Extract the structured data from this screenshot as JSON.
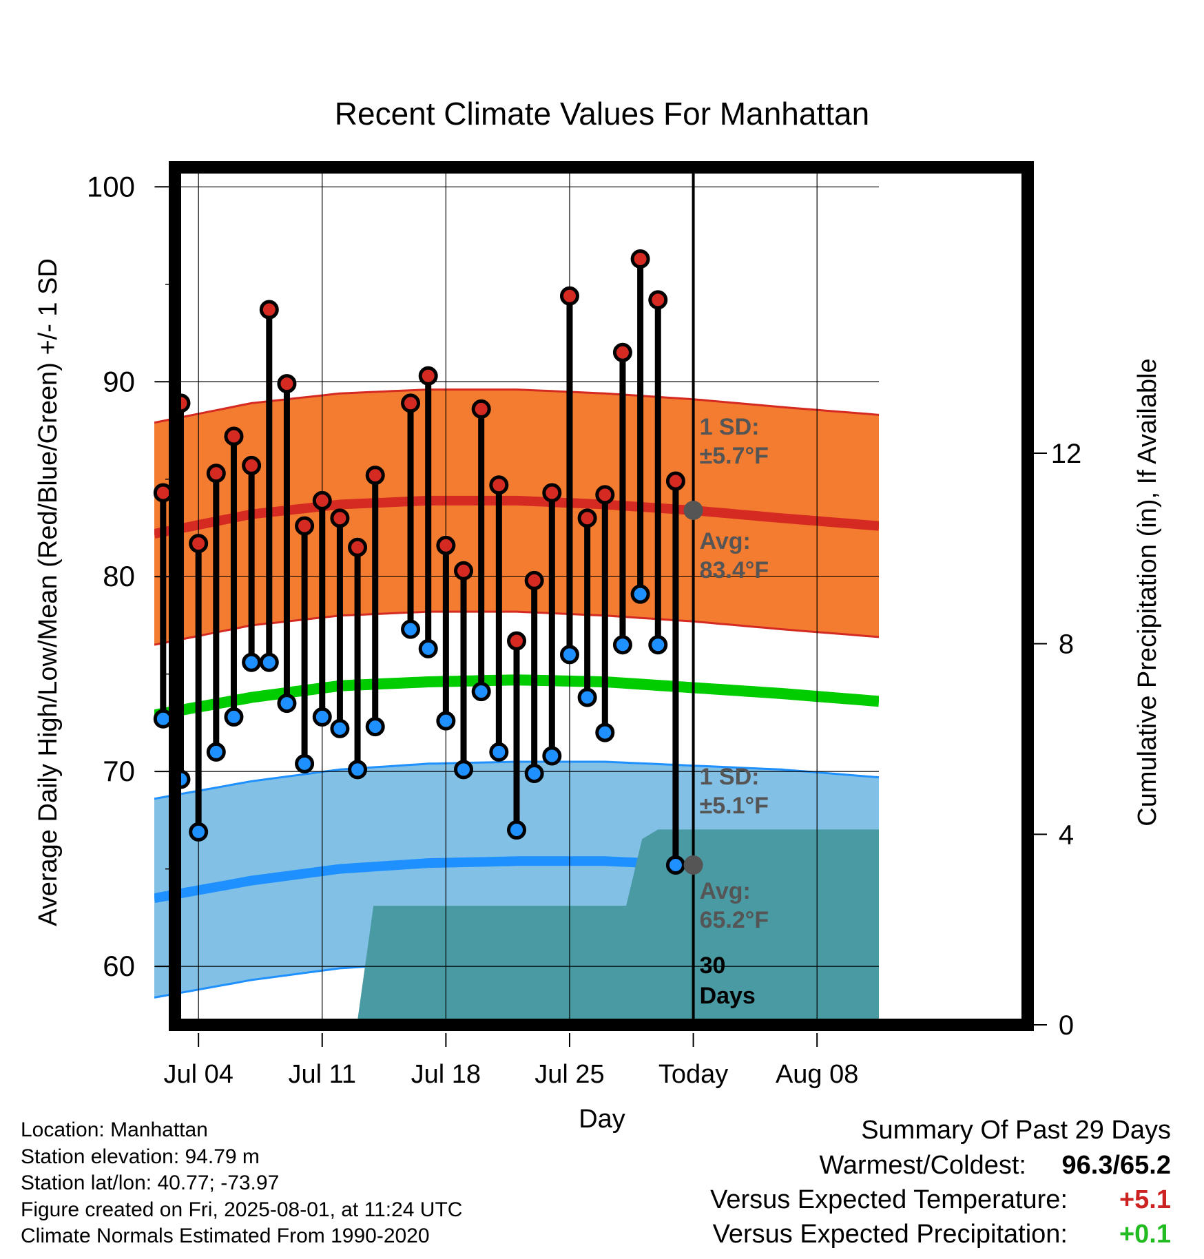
{
  "chart_data": {
    "type": "line",
    "title": "Recent Climate Values For Manhattan",
    "xlabel": "Day",
    "ylabel_left": "Average Daily High/Low/Mean (Red/Blue/Green) +/- 1 SD",
    "ylabel_right": "Cumulative Precipitation (in), If Available",
    "ylim": [
      57,
      101
    ],
    "yticks": [
      60,
      70,
      80,
      90,
      100
    ],
    "ylim_right": [
      0,
      18
    ],
    "yticks_right": [
      0,
      4,
      8,
      12
    ],
    "x_range_days": [
      -30.5,
      10.5
    ],
    "x_ticks": [
      {
        "day": -28,
        "label": "Jul 04"
      },
      {
        "day": -21,
        "label": "Jul 11"
      },
      {
        "day": -14,
        "label": "Jul 18"
      },
      {
        "day": -7,
        "label": "Jul 25"
      },
      {
        "day": 0,
        "label": "Today"
      },
      {
        "day": 7,
        "label": "Aug 08"
      }
    ],
    "grid": true,
    "series": [
      {
        "name": "High",
        "color": "#cc2222"
      },
      {
        "name": "Low",
        "color": "#1e90ff"
      },
      {
        "name": "Mean",
        "color": "#00cc00"
      }
    ],
    "observed": [
      {
        "date": "Jul 02",
        "day": -30,
        "high": 84.3,
        "low": 72.7
      },
      {
        "date": "Jul 03",
        "day": -29,
        "high": 88.9,
        "low": 69.6
      },
      {
        "date": "Jul 04",
        "day": -28,
        "high": 81.7,
        "low": 66.9
      },
      {
        "date": "Jul 05",
        "day": -27,
        "high": 85.3,
        "low": 71.0
      },
      {
        "date": "Jul 06",
        "day": -26,
        "high": 87.2,
        "low": 72.8
      },
      {
        "date": "Jul 07",
        "day": -25,
        "high": 85.7,
        "low": 75.6
      },
      {
        "date": "Jul 08",
        "day": -24,
        "high": 93.7,
        "low": 75.6
      },
      {
        "date": "Jul 09",
        "day": -23,
        "high": 89.9,
        "low": 73.5
      },
      {
        "date": "Jul 10",
        "day": -22,
        "high": 82.6,
        "low": 70.4
      },
      {
        "date": "Jul 11",
        "day": -21,
        "high": 83.9,
        "low": 72.8
      },
      {
        "date": "Jul 12",
        "day": -20,
        "high": 83.0,
        "low": 72.2
      },
      {
        "date": "Jul 13",
        "day": -19,
        "high": 81.5,
        "low": 70.1
      },
      {
        "date": "Jul 14",
        "day": -18,
        "high": 85.2,
        "low": 72.3
      },
      {
        "date": "Jul 16",
        "day": -16,
        "high": 88.9,
        "low": 77.3
      },
      {
        "date": "Jul 17",
        "day": -15,
        "high": 90.3,
        "low": 76.3
      },
      {
        "date": "Jul 18",
        "day": -14,
        "high": 81.6,
        "low": 72.6
      },
      {
        "date": "Jul 19",
        "day": -13,
        "high": 80.3,
        "low": 70.1
      },
      {
        "date": "Jul 20",
        "day": -12,
        "high": 88.6,
        "low": 74.1
      },
      {
        "date": "Jul 21",
        "day": -11,
        "high": 84.7,
        "low": 71.0
      },
      {
        "date": "Jul 22",
        "day": -10,
        "high": 76.7,
        "low": 67.0
      },
      {
        "date": "Jul 23",
        "day": -9,
        "high": 79.8,
        "low": 69.9
      },
      {
        "date": "Jul 24",
        "day": -8,
        "high": 84.3,
        "low": 70.8
      },
      {
        "date": "Jul 25",
        "day": -7,
        "high": 94.4,
        "low": 76.0
      },
      {
        "date": "Jul 26",
        "day": -6,
        "high": 83.0,
        "low": 73.8
      },
      {
        "date": "Jul 27",
        "day": -5,
        "high": 84.2,
        "low": 72.0
      },
      {
        "date": "Jul 28",
        "day": -4,
        "high": 91.5,
        "low": 76.5
      },
      {
        "date": "Jul 29",
        "day": -3,
        "high": 96.3,
        "low": 79.1
      },
      {
        "date": "Jul 30",
        "day": -2,
        "high": 94.2,
        "low": 76.5
      },
      {
        "date": "Jul 31",
        "day": -1,
        "high": 84.9,
        "low": 65.2
      }
    ],
    "normals": {
      "days": [
        -30.5,
        -25,
        -20,
        -15,
        -10,
        -5,
        0,
        5,
        10.5
      ],
      "avg_high": [
        82.2,
        83.2,
        83.7,
        83.9,
        83.9,
        83.7,
        83.4,
        83.0,
        82.6
      ],
      "avg_low": [
        63.5,
        64.4,
        65.0,
        65.3,
        65.4,
        65.4,
        65.2,
        65.0,
        64.6
      ],
      "avg_mean": [
        72.9,
        73.8,
        74.4,
        74.6,
        74.7,
        74.6,
        74.3,
        74.0,
        73.6
      ],
      "high_sd": 5.7,
      "low_sd": 5.1
    },
    "precipitation_cumulative": {
      "days": [
        -30.5,
        -23.5,
        -22.8,
        -20,
        -19.5,
        -19,
        -18.1,
        -3.8,
        -2.9,
        -2,
        10.5
      ],
      "values": [
        0,
        0,
        0.1,
        0.1,
        0.1,
        0.1,
        2.5,
        2.5,
        3.9,
        4.1,
        4.1
      ]
    },
    "annotations": {
      "high_sd": "1 SD:",
      "high_sd_value": "±5.7°F",
      "high_avg": "Avg:",
      "high_avg_value": "83.4°F",
      "low_sd": "1 SD:",
      "low_sd_value": "±5.1°F",
      "low_avg": "Avg:",
      "low_avg_value": "65.2°F",
      "window_line1": "30",
      "window_line2": "Days"
    },
    "colors": {
      "high_band": "#f47c30",
      "high_line": "#d42a22",
      "low_band": "#82c0e6",
      "low_line": "#1e90ff",
      "mean_line": "#00cc00",
      "precip": "#4a9aa3",
      "annotation_text": "#555555",
      "today_marker": "#555555"
    }
  },
  "footer": {
    "location": "Location: Manhattan",
    "elevation": "Station elevation: 94.79 m",
    "latlon": "Station lat/lon: 40.77; -73.97",
    "created": "Figure created on Fri, 2025-08-01, at 11:24 UTC",
    "normals_note": "Climate Normals Estimated From 1990-2020"
  },
  "summary": {
    "title": "Summary Of Past 29 Days",
    "warmest_coldest_label": "Warmest/Coldest:",
    "warmest_coldest_value": "96.3/65.2",
    "temp_label": "Versus Expected Temperature:",
    "temp_value": "+5.1",
    "temp_color": "#cc2222",
    "precip_label": "Versus Expected Precipitation:",
    "precip_value": "+0.1",
    "precip_color": "#22bb22"
  }
}
